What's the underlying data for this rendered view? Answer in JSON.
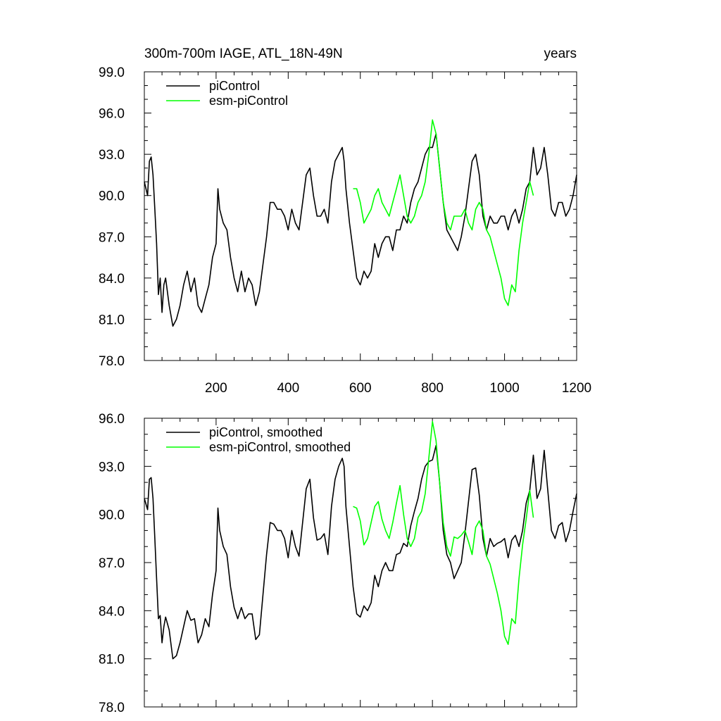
{
  "chart_data": [
    {
      "type": "line",
      "title": "300m-700m IAGE, ATL_18N-49N",
      "subtitle": "years",
      "xlim": [
        1,
        1200
      ],
      "ylim": [
        78.0,
        99.0
      ],
      "xticks": [
        200,
        400,
        600,
        800,
        1000,
        1200
      ],
      "xtick_labels": [
        "200",
        "400",
        "600",
        "800",
        "1000",
        "1200"
      ],
      "yticks": [
        78.0,
        81.0,
        84.0,
        87.0,
        90.0,
        93.0,
        96.0,
        99.0
      ],
      "ytick_labels": [
        "78.0",
        "81.0",
        "84.0",
        "87.0",
        "90.0",
        "93.0",
        "96.0",
        "99.0"
      ],
      "legend_position": "top-left",
      "colors": {
        "piControl": "#000000",
        "esm-piControl": "#00ff00"
      },
      "series": [
        {
          "name": "piControl",
          "x": [
            1,
            10,
            15,
            20,
            25,
            30,
            35,
            40,
            45,
            50,
            55,
            60,
            70,
            80,
            90,
            100,
            110,
            120,
            130,
            140,
            150,
            160,
            170,
            180,
            190,
            200,
            205,
            210,
            220,
            230,
            240,
            250,
            260,
            270,
            280,
            290,
            300,
            310,
            320,
            330,
            340,
            350,
            360,
            370,
            380,
            390,
            400,
            410,
            420,
            430,
            440,
            450,
            460,
            470,
            480,
            490,
            500,
            510,
            520,
            530,
            540,
            550,
            555,
            560,
            570,
            580,
            590,
            600,
            610,
            620,
            630,
            640,
            650,
            660,
            670,
            680,
            690,
            700,
            710,
            720,
            730,
            740,
            750,
            760,
            770,
            780,
            790,
            800,
            810,
            820,
            830,
            840,
            850,
            860,
            870,
            880,
            890,
            900,
            910,
            920,
            930,
            940,
            950,
            960,
            970,
            980,
            990,
            1000,
            1010,
            1020,
            1030,
            1040,
            1050,
            1060,
            1070,
            1080,
            1090,
            1100,
            1110,
            1120,
            1130,
            1140,
            1150,
            1160,
            1170,
            1180,
            1190,
            1200
          ],
          "y": [
            91.0,
            90.0,
            92.5,
            92.8,
            91.5,
            89.0,
            86.5,
            82.8,
            84.0,
            81.5,
            83.5,
            84.0,
            82.0,
            80.5,
            81.0,
            82.0,
            83.5,
            84.5,
            83.0,
            84.0,
            82.0,
            81.5,
            82.5,
            83.5,
            85.5,
            86.5,
            90.5,
            89.0,
            88.0,
            87.5,
            85.5,
            84.0,
            83.0,
            84.5,
            83.0,
            84.0,
            83.5,
            82.0,
            83.0,
            85.0,
            87.0,
            89.5,
            89.5,
            89.0,
            89.0,
            88.5,
            87.5,
            89.0,
            88.0,
            87.5,
            89.5,
            91.5,
            92.0,
            90.0,
            88.5,
            88.5,
            89.0,
            88.0,
            91.0,
            92.5,
            93.0,
            93.5,
            92.5,
            90.5,
            88.0,
            86.0,
            84.0,
            83.5,
            84.5,
            84.0,
            84.5,
            86.5,
            85.5,
            86.5,
            87.0,
            87.0,
            86.0,
            87.5,
            87.5,
            88.5,
            88.0,
            89.5,
            90.5,
            91.0,
            92.0,
            93.0,
            93.5,
            93.5,
            94.5,
            92.0,
            89.5,
            87.5,
            87.0,
            86.5,
            86.0,
            87.0,
            88.5,
            90.5,
            92.5,
            93.0,
            91.5,
            88.5,
            87.5,
            88.5,
            88.0,
            88.0,
            88.5,
            88.5,
            87.5,
            88.5,
            89.0,
            88.0,
            89.0,
            90.5,
            91.0,
            93.5,
            91.5,
            92.0,
            93.5,
            91.5,
            89.0,
            88.5,
            89.5,
            89.5,
            88.5,
            89.0,
            90.0,
            91.5
          ]
        },
        {
          "name": "esm-piControl",
          "x": [
            580,
            590,
            600,
            610,
            620,
            630,
            640,
            650,
            660,
            670,
            680,
            690,
            700,
            710,
            720,
            730,
            740,
            750,
            760,
            770,
            780,
            790,
            800,
            810,
            820,
            830,
            840,
            850,
            860,
            870,
            880,
            890,
            900,
            910,
            920,
            930,
            940,
            950,
            960,
            970,
            980,
            990,
            1000,
            1010,
            1020,
            1030,
            1040,
            1050,
            1060,
            1070,
            1080
          ],
          "y": [
            90.5,
            90.5,
            89.5,
            88.0,
            88.5,
            89.0,
            90.0,
            90.5,
            89.5,
            89.0,
            88.5,
            89.5,
            90.5,
            91.5,
            90.0,
            88.5,
            88.0,
            88.5,
            89.5,
            90.0,
            91.0,
            93.0,
            95.5,
            94.5,
            92.0,
            89.5,
            88.0,
            87.5,
            88.5,
            88.5,
            88.5,
            89.0,
            88.0,
            87.5,
            89.0,
            89.5,
            89.0,
            87.5,
            87.0,
            86.0,
            85.0,
            84.0,
            82.5,
            82.0,
            83.5,
            83.0,
            86.0,
            88.0,
            89.5,
            91.0,
            90.0
          ]
        }
      ]
    },
    {
      "type": "line",
      "title": "",
      "xlim": [
        1,
        1200
      ],
      "ylim": [
        78.0,
        96.0
      ],
      "yticks": [
        78.0,
        81.0,
        84.0,
        87.0,
        90.0,
        93.0,
        96.0
      ],
      "ytick_labels": [
        "78.0",
        "81.0",
        "84.0",
        "87.0",
        "90.0",
        "93.0",
        "96.0"
      ],
      "legend_position": "top-left",
      "colors": {
        "piControl, smoothed": "#000000",
        "esm-piControl, smoothed": "#00ff00"
      },
      "series": [
        {
          "name": "piControl, smoothed",
          "x": [
            1,
            10,
            15,
            20,
            25,
            30,
            35,
            40,
            45,
            50,
            55,
            60,
            70,
            80,
            90,
            100,
            110,
            120,
            130,
            140,
            150,
            160,
            170,
            180,
            190,
            200,
            205,
            210,
            220,
            230,
            240,
            250,
            260,
            270,
            280,
            290,
            300,
            310,
            320,
            330,
            340,
            350,
            360,
            370,
            380,
            390,
            400,
            410,
            420,
            430,
            440,
            450,
            460,
            470,
            480,
            490,
            500,
            510,
            520,
            530,
            540,
            550,
            555,
            560,
            570,
            580,
            590,
            600,
            610,
            620,
            630,
            640,
            650,
            660,
            670,
            680,
            690,
            700,
            710,
            720,
            730,
            740,
            750,
            760,
            770,
            780,
            790,
            800,
            810,
            820,
            830,
            840,
            850,
            860,
            870,
            880,
            890,
            900,
            910,
            920,
            930,
            940,
            950,
            960,
            970,
            980,
            990,
            1000,
            1010,
            1020,
            1030,
            1040,
            1050,
            1060,
            1070,
            1080,
            1090,
            1100,
            1110,
            1120,
            1130,
            1140,
            1150,
            1160,
            1170,
            1180,
            1190,
            1200
          ],
          "y": [
            91.0,
            90.3,
            92.2,
            92.3,
            91.0,
            88.5,
            86.0,
            83.5,
            83.7,
            82.0,
            83.0,
            83.6,
            82.8,
            81.0,
            81.2,
            82.0,
            83.0,
            84.0,
            83.4,
            83.5,
            82.0,
            82.5,
            83.5,
            83.0,
            85.0,
            86.5,
            90.4,
            89.0,
            88.0,
            87.5,
            85.5,
            84.2,
            83.5,
            84.2,
            83.5,
            83.8,
            83.8,
            82.2,
            82.5,
            85.0,
            87.5,
            89.5,
            89.4,
            89.0,
            89.0,
            88.5,
            87.3,
            89.0,
            88.0,
            87.4,
            89.5,
            91.6,
            92.2,
            89.8,
            88.4,
            88.5,
            88.8,
            87.5,
            90.5,
            92.2,
            93.0,
            93.5,
            93.0,
            90.5,
            88.0,
            85.5,
            83.8,
            83.6,
            84.3,
            84.0,
            84.5,
            86.2,
            85.5,
            86.5,
            87.0,
            86.5,
            86.5,
            87.5,
            87.6,
            88.2,
            88.0,
            89.3,
            90.2,
            91.0,
            92.2,
            93.0,
            93.3,
            93.4,
            94.3,
            92.0,
            89.0,
            87.5,
            87.0,
            86.0,
            86.5,
            87.0,
            88.8,
            90.8,
            92.8,
            92.9,
            91.2,
            88.5,
            87.4,
            88.5,
            88.0,
            88.2,
            88.3,
            88.5,
            87.3,
            88.4,
            88.7,
            88.0,
            89.0,
            90.7,
            91.5,
            93.7,
            91.0,
            91.6,
            94.0,
            91.5,
            89.0,
            88.5,
            89.3,
            89.5,
            88.3,
            89.0,
            90.2,
            91.3
          ]
        },
        {
          "name": "esm-piControl, smoothed",
          "x": [
            580,
            590,
            600,
            610,
            620,
            630,
            640,
            650,
            660,
            670,
            680,
            690,
            700,
            710,
            720,
            730,
            740,
            750,
            760,
            770,
            780,
            790,
            800,
            810,
            820,
            830,
            840,
            850,
            860,
            870,
            880,
            890,
            900,
            910,
            920,
            930,
            940,
            950,
            960,
            970,
            980,
            990,
            1000,
            1010,
            1020,
            1030,
            1040,
            1050,
            1060,
            1070,
            1080
          ],
          "y": [
            90.5,
            90.4,
            89.6,
            88.1,
            88.5,
            89.5,
            90.5,
            90.8,
            89.7,
            89.0,
            88.5,
            89.5,
            90.7,
            91.8,
            90.0,
            88.5,
            88.0,
            88.5,
            89.8,
            90.2,
            91.3,
            93.5,
            95.8,
            94.6,
            92.0,
            89.5,
            88.0,
            87.4,
            88.6,
            88.5,
            88.7,
            89.0,
            88.3,
            87.5,
            89.2,
            89.6,
            89.0,
            87.4,
            86.9,
            86.0,
            85.1,
            84.0,
            82.4,
            81.9,
            83.5,
            83.2,
            86.0,
            88.1,
            89.7,
            91.5,
            89.8
          ]
        }
      ]
    }
  ]
}
